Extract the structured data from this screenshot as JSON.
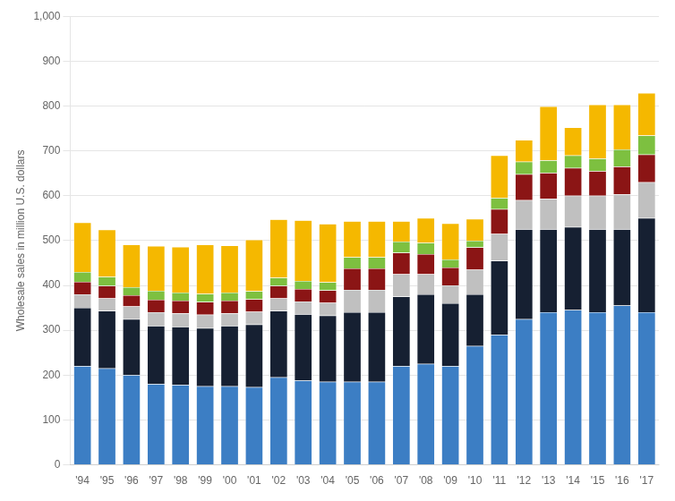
{
  "chart_data": {
    "type": "bar",
    "stacked": true,
    "categories": [
      "'94",
      "'95",
      "'96",
      "'97",
      "'98",
      "'99",
      "'00",
      "'01",
      "'02",
      "'03",
      "'04",
      "'05",
      "'06",
      "'07",
      "'08",
      "'09",
      "'10",
      "'11",
      "'12",
      "'13",
      "'14",
      "'15",
      "'16",
      "'17"
    ],
    "series": [
      {
        "color": "#3c7ec4",
        "values": [
          220,
          215,
          200,
          180,
          178,
          175,
          175,
          173,
          195,
          188,
          185,
          185,
          185,
          220,
          225,
          220,
          265,
          290,
          325,
          340,
          345,
          340,
          355,
          340
        ]
      },
      {
        "color": "#162032",
        "values": [
          130,
          128,
          125,
          130,
          130,
          130,
          135,
          140,
          148,
          148,
          148,
          155,
          155,
          155,
          155,
          140,
          115,
          165,
          200,
          185,
          185,
          185,
          170,
          210
        ]
      },
      {
        "color": "#c0c0c0",
        "values": [
          30,
          28,
          28,
          30,
          30,
          30,
          28,
          28,
          28,
          28,
          28,
          50,
          50,
          50,
          45,
          40,
          55,
          60,
          65,
          68,
          70,
          75,
          78,
          80
        ]
      },
      {
        "color": "#8b1515",
        "values": [
          28,
          28,
          25,
          28,
          28,
          28,
          28,
          28,
          28,
          28,
          28,
          48,
          48,
          48,
          45,
          40,
          50,
          55,
          58,
          58,
          62,
          55,
          62,
          62
        ]
      },
      {
        "color": "#7dc040",
        "values": [
          22,
          20,
          18,
          20,
          18,
          18,
          18,
          18,
          18,
          18,
          18,
          25,
          25,
          25,
          25,
          18,
          15,
          25,
          28,
          28,
          28,
          28,
          38,
          42
        ]
      },
      {
        "color": "#f5b800",
        "values": [
          110,
          105,
          95,
          100,
          102,
          110,
          105,
          115,
          130,
          135,
          130,
          80,
          80,
          45,
          55,
          80,
          48,
          95,
          48,
          120,
          62,
          120,
          100,
          95
        ]
      }
    ],
    "ylabel": "Wholesale sales in million U.S. dollars",
    "ylim": [
      0,
      1000
    ],
    "yticks": [
      0,
      100,
      200,
      300,
      400,
      500,
      600,
      700,
      800,
      900,
      {
        "value": 1000,
        "label": "1,000"
      }
    ],
    "grid": true
  }
}
